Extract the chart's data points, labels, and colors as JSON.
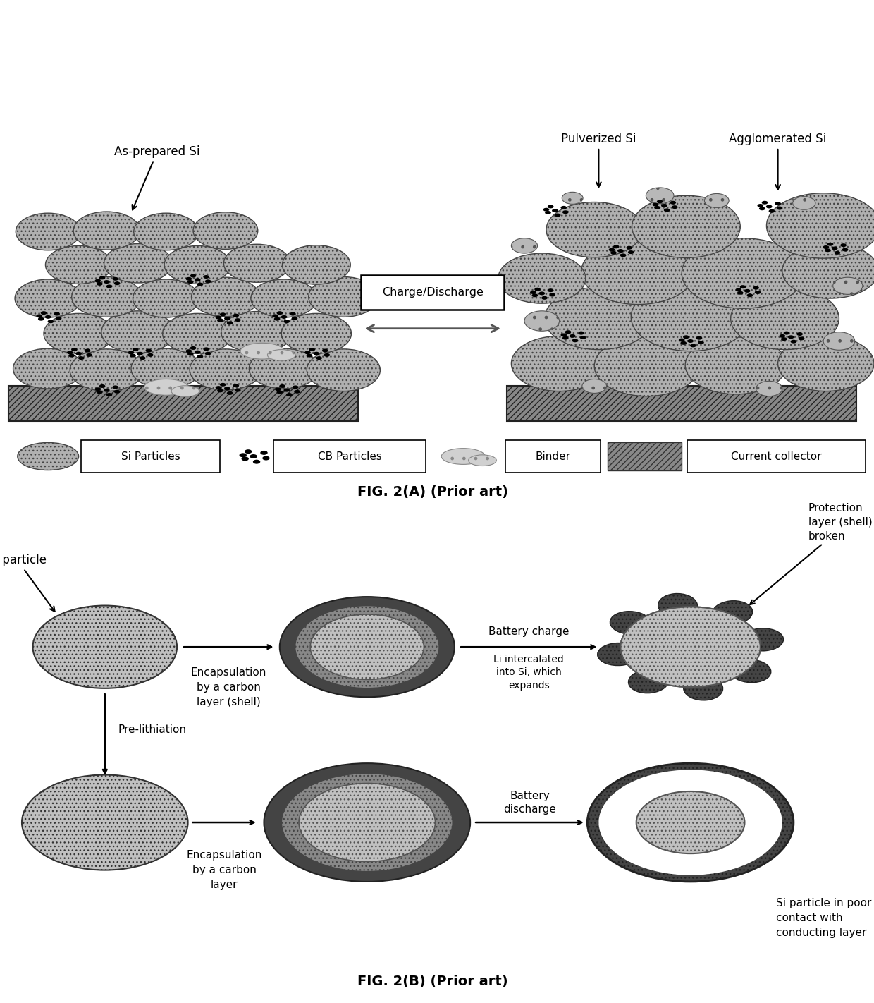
{
  "fig_width": 12.4,
  "fig_height": 14.22,
  "bg_color": "#ffffff",
  "fig2a_title": "FIG. 2(A) (Prior art)",
  "fig2b_title": "FIG. 2(B) (Prior art)",
  "label_asprepared": "As-prepared Si",
  "label_pulverized": "Pulverized Si",
  "label_agglomerated": "Agglomerated Si",
  "label_charge_discharge": "Charge/Discharge",
  "legend_si": "Si Particles",
  "legend_cb": "CB Particles",
  "legend_binder": "Binder",
  "legend_collector": "Current collector",
  "label_si_particle": "Si particle",
  "label_encap_shell": "Encapsulation\nby a carbon\nlayer (shell)",
  "label_encap_layer": "Encapsulation\nby a carbon\nlayer",
  "label_pre_lithiation": "Pre-lithiation",
  "label_battery_charge": "Battery charge",
  "label_li_intercalated": "Li intercalated\ninto Si, which\nexpands",
  "label_battery_discharge": "Battery\ndischarge",
  "label_protection_broken": "Protection\nlayer (shell)  is\nbroken",
  "label_si_poor_contact": "Si particle in poor\ncontact with\nconducting layer",
  "si_gray": "#a0a0a0",
  "si_edge": "#333333",
  "shell_dark": "#3a3a3a",
  "shell_mid": "#888888",
  "cc_gray": "#888888"
}
